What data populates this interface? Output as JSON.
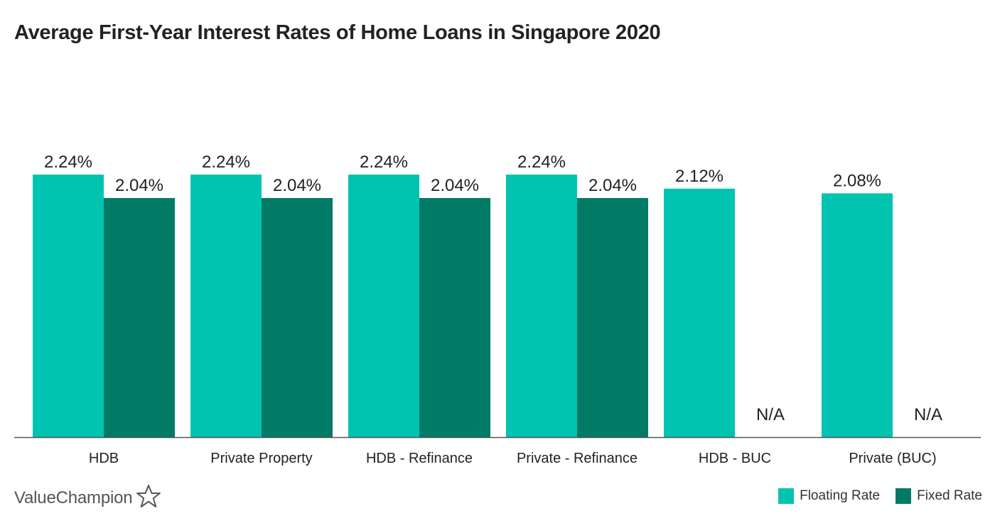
{
  "title": "Average First-Year Interest Rates of Home Loans in Singapore 2020",
  "brand": {
    "name": "ValueChampion",
    "icon": "star-outline-icon"
  },
  "colors": {
    "floating": "#00c4b0",
    "fixed": "#017a66",
    "axis": "#555555",
    "text": "#222222"
  },
  "chart_data": {
    "type": "bar",
    "title": "Average First-Year Interest Rates of Home Loans in Singapore 2020",
    "categories": [
      "HDB",
      "Private Property",
      "HDB - Refinance",
      "Private - Refinance",
      "HDB - BUC",
      "Private (BUC)"
    ],
    "series": [
      {
        "name": "Floating Rate",
        "values": [
          2.24,
          2.24,
          2.24,
          2.24,
          2.12,
          2.08
        ],
        "labels": [
          "2.24%",
          "2.24%",
          "2.24%",
          "2.24%",
          "2.12%",
          "2.08%"
        ]
      },
      {
        "name": "Fixed Rate",
        "values": [
          2.04,
          2.04,
          2.04,
          2.04,
          null,
          null
        ],
        "labels": [
          "2.04%",
          "2.04%",
          "2.04%",
          "2.04%",
          "N/A",
          "N/A"
        ]
      }
    ],
    "ylim": [
      0,
      2.24
    ],
    "grid": false,
    "legend": "bottom-right",
    "xlabel": "",
    "ylabel": ""
  }
}
